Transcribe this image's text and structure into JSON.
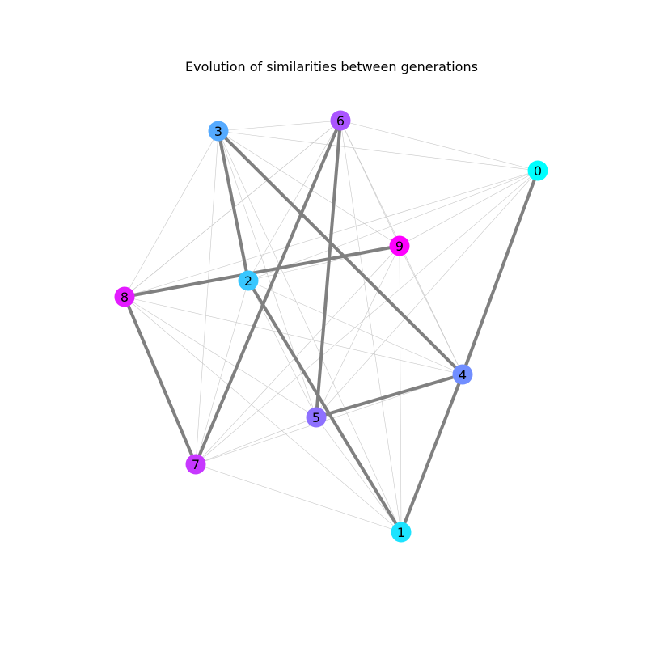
{
  "title": "Evolution of similarities between generations",
  "graph": {
    "nodes": [
      {
        "id": "0",
        "label": "0",
        "color": "#00ffff"
      },
      {
        "id": "1",
        "label": "1",
        "color": "#1ce3ff"
      },
      {
        "id": "2",
        "label": "2",
        "color": "#38c7ff"
      },
      {
        "id": "3",
        "label": "3",
        "color": "#55aaff"
      },
      {
        "id": "4",
        "label": "4",
        "color": "#718eff"
      },
      {
        "id": "5",
        "label": "5",
        "color": "#8e71ff"
      },
      {
        "id": "6",
        "label": "6",
        "color": "#aa55ff"
      },
      {
        "id": "7",
        "label": "7",
        "color": "#c738ff"
      },
      {
        "id": "8",
        "label": "8",
        "color": "#e31cff"
      },
      {
        "id": "9",
        "label": "9",
        "color": "#ff00ff"
      }
    ],
    "strong_edges": [
      [
        "0",
        "4"
      ],
      [
        "4",
        "1"
      ],
      [
        "4",
        "5"
      ],
      [
        "5",
        "6"
      ],
      [
        "6",
        "7"
      ],
      [
        "7",
        "8"
      ],
      [
        "8",
        "9"
      ],
      [
        "3",
        "2"
      ],
      [
        "3",
        "4"
      ],
      [
        "2",
        "1"
      ]
    ],
    "weak_edges": [
      [
        "3",
        "6"
      ],
      [
        "3",
        "0"
      ],
      [
        "3",
        "8"
      ],
      [
        "3",
        "9"
      ],
      [
        "3",
        "5"
      ],
      [
        "3",
        "7"
      ],
      [
        "3",
        "1"
      ],
      [
        "6",
        "0"
      ],
      [
        "6",
        "2"
      ],
      [
        "6",
        "8"
      ],
      [
        "6",
        "9"
      ],
      [
        "6",
        "4"
      ],
      [
        "6",
        "1"
      ],
      [
        "0",
        "9"
      ],
      [
        "0",
        "2"
      ],
      [
        "0",
        "8"
      ],
      [
        "0",
        "5"
      ],
      [
        "0",
        "7"
      ],
      [
        "0",
        "1"
      ],
      [
        "9",
        "2"
      ],
      [
        "9",
        "5"
      ],
      [
        "9",
        "7"
      ],
      [
        "9",
        "1"
      ],
      [
        "9",
        "4"
      ],
      [
        "8",
        "4"
      ],
      [
        "8",
        "5"
      ],
      [
        "8",
        "1"
      ],
      [
        "8",
        "6"
      ],
      [
        "2",
        "4"
      ],
      [
        "2",
        "5"
      ],
      [
        "2",
        "7"
      ],
      [
        "7",
        "5"
      ],
      [
        "7",
        "1"
      ],
      [
        "7",
        "4"
      ],
      [
        "5",
        "1"
      ]
    ],
    "edge_color_strong": "#808080",
    "edge_color_weak": "#c8c8c8"
  }
}
